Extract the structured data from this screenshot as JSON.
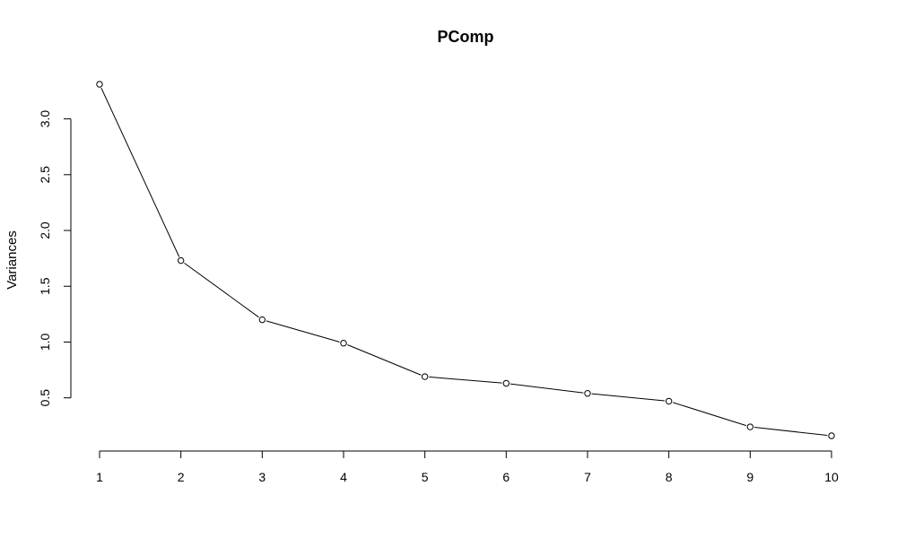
{
  "chart_data": {
    "type": "line",
    "title": "PComp",
    "xlabel": "",
    "ylabel": "Variances",
    "x": [
      1,
      2,
      3,
      4,
      5,
      6,
      7,
      8,
      9,
      10
    ],
    "series": [
      {
        "values": [
          3.31,
          1.73,
          1.2,
          0.99,
          0.69,
          0.63,
          0.54,
          0.47,
          0.24,
          0.16
        ]
      }
    ],
    "xticks": [
      1,
      2,
      3,
      4,
      5,
      6,
      7,
      8,
      9,
      10
    ],
    "yticks": [
      0.5,
      1.0,
      1.5,
      2.0,
      2.5,
      3.0
    ],
    "ytick_labels": [
      "0.5",
      "1.0",
      "1.5",
      "2.0",
      "2.5",
      "3.0"
    ],
    "xlim": [
      1,
      10
    ],
    "ylim": [
      0.16,
      3.31
    ],
    "grid": false,
    "legend": "none",
    "point_style": "open-circle",
    "line_color": "#000000"
  }
}
